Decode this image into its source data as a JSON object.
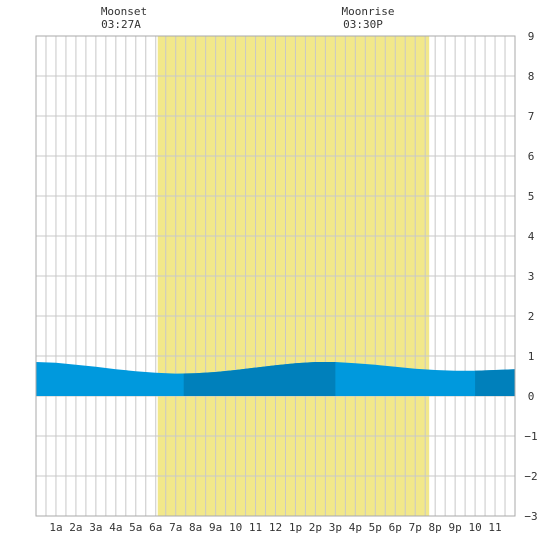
{
  "chart_data": {
    "type": "area",
    "x_tick_labels": [
      "1a",
      "2a",
      "3a",
      "4a",
      "5a",
      "6a",
      "7a",
      "8a",
      "9a",
      "10",
      "11",
      "12",
      "1p",
      "2p",
      "3p",
      "4p",
      "5p",
      "6p",
      "7p",
      "8p",
      "9p",
      "10",
      "11"
    ],
    "y_ticks": [
      9,
      8,
      7,
      6,
      5,
      4,
      3,
      2,
      1,
      0,
      -1,
      -2,
      -3
    ],
    "ylim": [
      -3,
      9
    ],
    "xlim_hours": [
      0,
      24
    ],
    "grid": true,
    "daylight_hours": [
      6.1,
      19.7
    ],
    "annotations": [
      {
        "name": "moonset",
        "title": "Moonset",
        "time": "03:27A",
        "hour": 3.45
      },
      {
        "name": "moonrise",
        "title": "Moonrise",
        "time": "03:30P",
        "hour": 15.5
      }
    ],
    "series": [
      {
        "x_hours": [
          0,
          1,
          2,
          3,
          4,
          5,
          6,
          7,
          8,
          9,
          10,
          11,
          12,
          13,
          14,
          15,
          16,
          17,
          18,
          19,
          20,
          21,
          22,
          23,
          24
        ],
        "values": [
          0.85,
          0.83,
          0.78,
          0.73,
          0.67,
          0.62,
          0.58,
          0.56,
          0.57,
          0.6,
          0.65,
          0.71,
          0.77,
          0.82,
          0.85,
          0.85,
          0.82,
          0.78,
          0.73,
          0.68,
          0.65,
          0.63,
          0.63,
          0.65,
          0.67
        ]
      }
    ],
    "shading_bands_hours": [
      [
        7.4,
        15
      ],
      [
        22,
        24
      ]
    ],
    "colors": {
      "daylight": "#f2e88a",
      "water": "#0099dd",
      "water_dark": "#0080bb",
      "grid": "#c8c8c8",
      "frame": "#aaaaaa"
    }
  }
}
